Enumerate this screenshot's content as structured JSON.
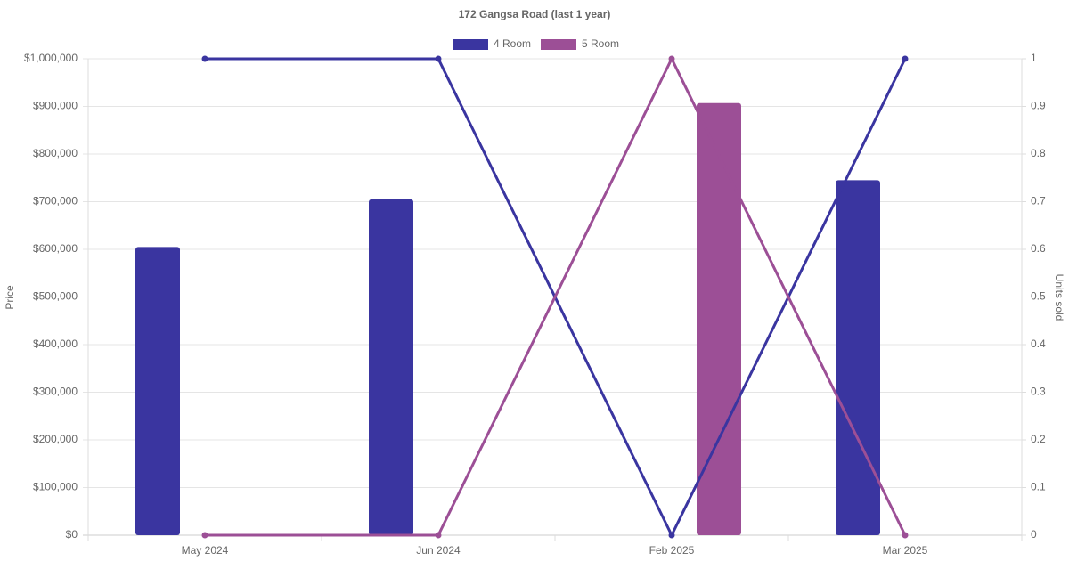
{
  "chart_data": {
    "type": "bar-line",
    "title": "172 Gangsa Road (last 1 year)",
    "categories": [
      "May 2024",
      "Jun 2024",
      "Feb 2025",
      "Mar 2025"
    ],
    "series": [
      {
        "name": "4 Room",
        "color": "#3a35a0",
        "values": [
          605000,
          705000,
          null,
          745000
        ],
        "units_sold": [
          1,
          1,
          0,
          1
        ]
      },
      {
        "name": "5 Room",
        "color": "#9c4f96",
        "values": [
          null,
          null,
          907000,
          null
        ],
        "units_sold": [
          0,
          0,
          1,
          0
        ]
      }
    ],
    "y_label": "Price",
    "y2_label": "Units sold",
    "ylim": [
      0,
      1000000
    ],
    "yticks": [
      {
        "value": 0,
        "label": "$0"
      },
      {
        "value": 100000,
        "label": "$100,000"
      },
      {
        "value": 200000,
        "label": "$200,000"
      },
      {
        "value": 300000,
        "label": "$300,000"
      },
      {
        "value": 400000,
        "label": "$400,000"
      },
      {
        "value": 500000,
        "label": "$500,000"
      },
      {
        "value": 600000,
        "label": "$600,000"
      },
      {
        "value": 700000,
        "label": "$700,000"
      },
      {
        "value": 800000,
        "label": "$800,000"
      },
      {
        "value": 900000,
        "label": "$900,000"
      },
      {
        "value": 1000000,
        "label": "$1,000,000"
      }
    ],
    "y2lim": [
      0,
      1
    ],
    "y2ticks": [
      0,
      0.1,
      0.2,
      0.3,
      0.4,
      0.5,
      0.6,
      0.7,
      0.8,
      0.9,
      1
    ],
    "grid": true,
    "legend": "top"
  }
}
